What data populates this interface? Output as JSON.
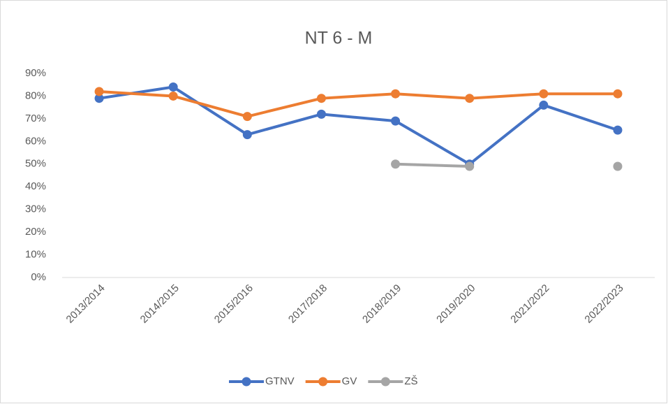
{
  "chart_data": {
    "type": "line",
    "title": "NT 6 - M",
    "categories": [
      "2013/2014",
      "2014/2015",
      "2015/2016",
      "2017/2018",
      "2018/2019",
      "2019/2020",
      "2021/2022",
      "2022/2023"
    ],
    "series": [
      {
        "name": "GTNV",
        "color": "#4472c4",
        "values": [
          79,
          84,
          63,
          72,
          69,
          50,
          76,
          65
        ]
      },
      {
        "name": "GV",
        "color": "#ed7d31",
        "values": [
          82,
          80,
          71,
          79,
          81,
          79,
          81,
          81
        ]
      },
      {
        "name": "ZŠ",
        "color": "#a5a5a5",
        "values": [
          null,
          null,
          null,
          null,
          50,
          49,
          null,
          49
        ]
      }
    ],
    "ylim": [
      0,
      90
    ],
    "yticks": [
      {
        "value": 0,
        "label": "0%"
      },
      {
        "value": 10,
        "label": "10%"
      },
      {
        "value": 20,
        "label": "20%"
      },
      {
        "value": 30,
        "label": "30%"
      },
      {
        "value": 40,
        "label": "40%"
      },
      {
        "value": 50,
        "label": "50%"
      },
      {
        "value": 60,
        "label": "60%"
      },
      {
        "value": 70,
        "label": "70%"
      },
      {
        "value": 80,
        "label": "80%"
      },
      {
        "value": 90,
        "label": "90%"
      }
    ],
    "grid": false,
    "legend": "bottom"
  }
}
